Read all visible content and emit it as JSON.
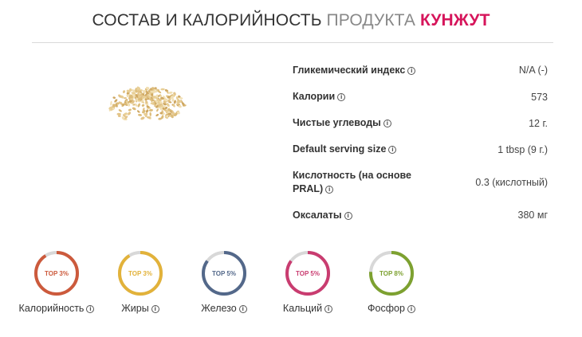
{
  "header": {
    "title_part1": "СОСТАВ И КАЛОРИЙНОСТЬ",
    "title_part2": "ПРОДУКТА",
    "title_part3": "КУНЖУТ"
  },
  "product_image": {
    "icon": "sesame-seeds-image"
  },
  "facts": [
    {
      "label": "Гликемический индекс",
      "value": "N/A (-)"
    },
    {
      "label": "Калории",
      "value": "573"
    },
    {
      "label": "Чистые углеводы",
      "value": "12 г."
    },
    {
      "label": "Default serving size",
      "value": "1 tbsp (9 г.)"
    },
    {
      "label": "Кислотность (на основе PRAL)",
      "value": "0.3 (кислотный)"
    },
    {
      "label": "Оксалаты",
      "value": "380 мг"
    }
  ],
  "info_icon_glyph": "i",
  "rankings": [
    {
      "label": "Калорийность",
      "badge": "TOP 3%",
      "percent": 3,
      "color": "#cc5a3c"
    },
    {
      "label": "Жиры",
      "badge": "TOP 3%",
      "percent": 3,
      "color": "#e2b23a"
    },
    {
      "label": "Железо",
      "badge": "TOP 5%",
      "percent": 5,
      "color": "#53688a"
    },
    {
      "label": "Кальций",
      "badge": "TOP 5%",
      "percent": 5,
      "color": "#c93c70"
    },
    {
      "label": "Фосфор",
      "badge": "TOP 8%",
      "percent": 8,
      "color": "#7da130"
    }
  ],
  "colors": {
    "accent": "#d6155b",
    "muted_title": "#888888",
    "ring_track": "#d8d8d8"
  }
}
